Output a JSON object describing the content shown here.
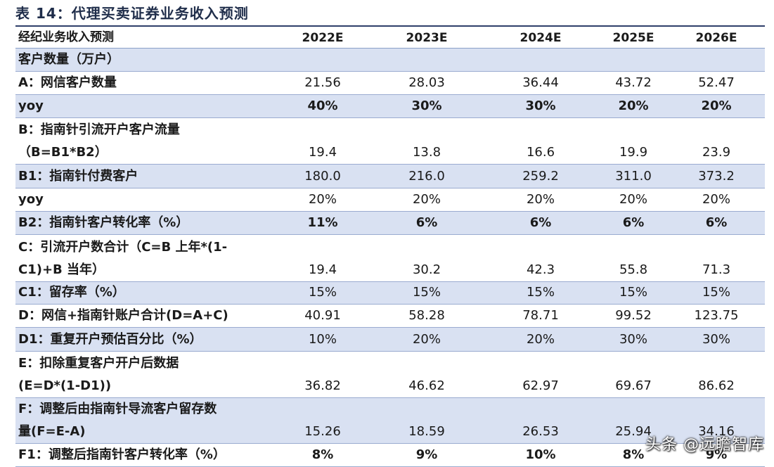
{
  "title": "表 14：代理买卖证券业务收入预测",
  "header": {
    "label": "经纪业务收入预测",
    "years": [
      "2022E",
      "2023E",
      "2024E",
      "2025E",
      "2026E"
    ]
  },
  "rows": [
    {
      "label_lines": [
        "客户数量（万户）"
      ],
      "values": [
        "",
        "",
        "",
        "",
        ""
      ],
      "bold_values": false
    },
    {
      "label_lines": [
        "A：网信客户数量"
      ],
      "values": [
        "21.56",
        "28.03",
        "36.44",
        "43.72",
        "52.47"
      ],
      "bold_values": false
    },
    {
      "label_lines": [
        "yoy"
      ],
      "values": [
        "40%",
        "30%",
        "30%",
        "20%",
        "20%"
      ],
      "bold_values": true
    },
    {
      "label_lines": [
        "B：指南针引流开户客户流量",
        "（B=B1*B2）"
      ],
      "values": [
        "19.4",
        "13.8",
        "16.6",
        "19.9",
        "23.9"
      ],
      "bold_values": false
    },
    {
      "label_lines": [
        "B1：指南针付费客户"
      ],
      "values": [
        "180.0",
        "216.0",
        "259.2",
        "311.0",
        "373.2"
      ],
      "bold_values": false
    },
    {
      "label_lines": [
        "yoy"
      ],
      "values": [
        "20%",
        "20%",
        "20%",
        "20%",
        "20%"
      ],
      "bold_values": false
    },
    {
      "label_lines": [
        "B2：指南针客户转化率（%）"
      ],
      "values": [
        "11%",
        "6%",
        "6%",
        "6%",
        "6%"
      ],
      "bold_values": true
    },
    {
      "label_lines": [
        "C：引流开户数合计（C=B 上年*(1-",
        "C1)+B 当年）"
      ],
      "values": [
        "19.4",
        "30.2",
        "42.3",
        "55.8",
        "71.3"
      ],
      "bold_values": false
    },
    {
      "label_lines": [
        "C1：留存率（%）"
      ],
      "values": [
        "15%",
        "15%",
        "15%",
        "15%",
        "15%"
      ],
      "bold_values": false
    },
    {
      "label_lines": [
        "D：网信+指南针账户合计(D=A+C)"
      ],
      "values": [
        "40.91",
        "58.28",
        "78.71",
        "99.52",
        "123.75"
      ],
      "bold_values": false
    },
    {
      "label_lines": [
        "D1：重复开户预估百分比（%）"
      ],
      "values": [
        "10%",
        "20%",
        "20%",
        "30%",
        "30%"
      ],
      "bold_values": false
    },
    {
      "label_lines": [
        "E：扣除重复客户开户后数据",
        "(E=D*(1-D1))"
      ],
      "values": [
        "36.82",
        "46.62",
        "62.97",
        "69.67",
        "86.62"
      ],
      "bold_values": false
    },
    {
      "label_lines": [
        "F：调整后由指南针导流客户留存数",
        "量(F=E-A)"
      ],
      "values": [
        "15.26",
        "18.59",
        "26.53",
        "25.94",
        "34.16"
      ],
      "bold_values": false
    },
    {
      "label_lines": [
        "F1：调整后指南针客户转化率（%）"
      ],
      "values": [
        "8%",
        "9%",
        "10%",
        "8%",
        "9%"
      ],
      "bold_values": true
    }
  ],
  "watermark": "头条 @远瞻智库"
}
